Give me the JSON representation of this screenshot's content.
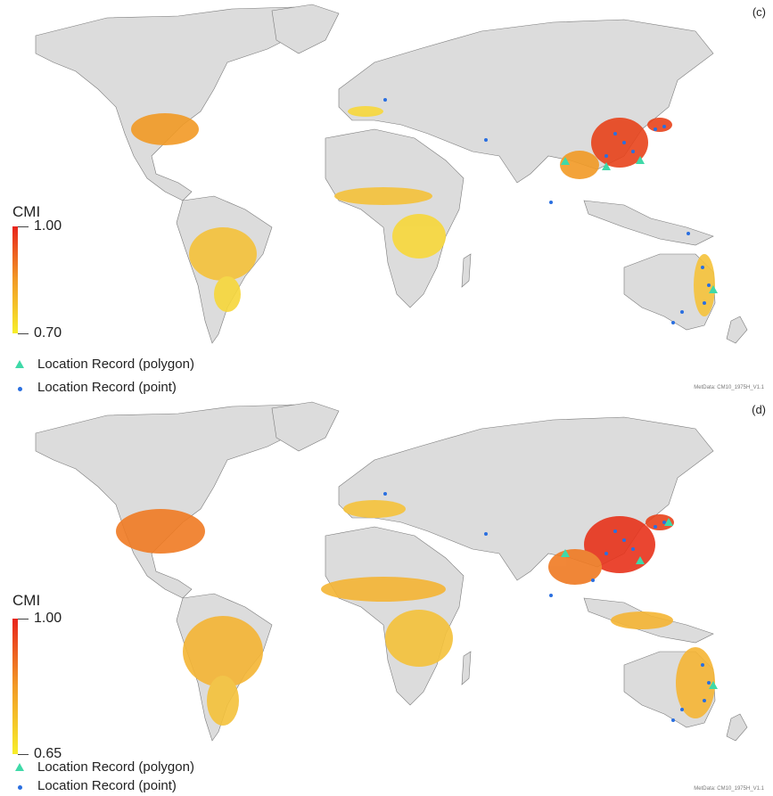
{
  "panels": [
    {
      "label": "(c)",
      "legend_title": "CMI",
      "legend_max": "1.00",
      "legend_min": "0.70",
      "legend_polygon": "Location Record (polygon)",
      "legend_point": "Location Record (point)",
      "metadata": "MetData: CM10_1975H_V1.1"
    },
    {
      "label": "(d)",
      "legend_title": "CMI",
      "legend_max": "1.00",
      "legend_min": "0.65",
      "legend_polygon": "Location Record (polygon)",
      "legend_point": "Location Record (point)",
      "metadata": "MetData: CM10_1975H_V1.1"
    }
  ],
  "colors": {
    "land": "#dcdcdc",
    "border": "#7a7a7a",
    "cmi_high": "#e8231b",
    "cmi_mid": "#f29a25",
    "cmi_low": "#f7ee2a",
    "polygon_marker": "#3fd9a8",
    "point_marker": "#2a6fe0"
  }
}
